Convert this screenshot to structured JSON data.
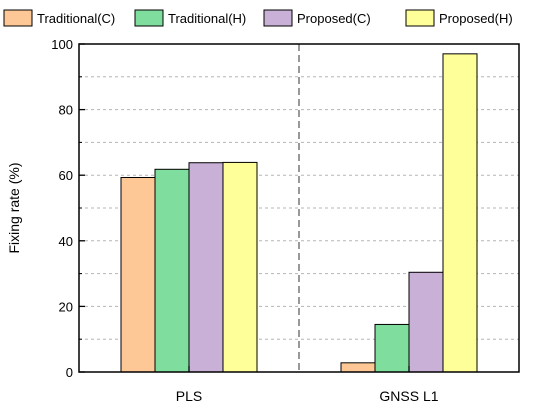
{
  "chart_data": {
    "type": "bar",
    "categories": [
      "PLS",
      "GNSS L1"
    ],
    "series": [
      {
        "name": "Traditional(C)",
        "color": "#FDC896",
        "values": [
          59.3,
          2.8
        ]
      },
      {
        "name": "Traditional(H)",
        "color": "#7FDE9E",
        "values": [
          61.8,
          14.5
        ]
      },
      {
        "name": "Proposed(C)",
        "color": "#C9B0D6",
        "values": [
          63.8,
          30.4
        ]
      },
      {
        "name": "Proposed(H)",
        "color": "#FFFF99",
        "values": [
          63.9,
          97.0
        ]
      }
    ],
    "ylabel": "Fixing rate (%)",
    "xlabel": "",
    "ylim": [
      0,
      100
    ],
    "yticks": [
      0,
      20,
      40,
      60,
      80,
      100
    ],
    "grid": "horizontal dashed at 10-unit intervals",
    "category_separator": "dashed vertical line between categories",
    "legend_position": "top, outside plot area"
  }
}
